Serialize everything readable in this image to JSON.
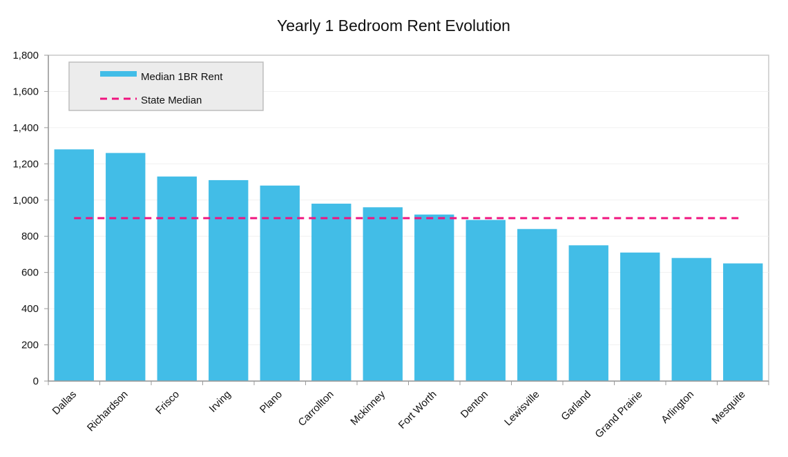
{
  "chart_data": {
    "type": "bar",
    "title": "Yearly 1 Bedroom Rent Evolution",
    "xlabel": "",
    "ylabel": "",
    "ylim": [
      0,
      1800
    ],
    "yticks": [
      0,
      200,
      400,
      600,
      800,
      1000,
      1200,
      1400,
      1600,
      1800
    ],
    "ytick_labels": [
      "0",
      "200",
      "400",
      "600",
      "800",
      "1,000",
      "1,200",
      "1,400",
      "1,600",
      "1,800"
    ],
    "categories": [
      "Dallas",
      "Richardson",
      "Frisco",
      "Irving",
      "Plano",
      "Carrollton",
      "Mckinney",
      "Fort Worth",
      "Denton",
      "Lewisville",
      "Garland",
      "Grand Prairie",
      "Arlington",
      "Mesquite"
    ],
    "series": [
      {
        "name": "Median 1BR Rent",
        "type": "bar",
        "color": "#42BDE7",
        "values": [
          1280,
          1260,
          1130,
          1110,
          1080,
          980,
          960,
          920,
          890,
          840,
          750,
          710,
          680,
          650
        ]
      },
      {
        "name": "State Median",
        "type": "line",
        "style": "dashed",
        "color": "#F0147F",
        "value": 900
      }
    ],
    "grid": true,
    "legend_position": "top-left"
  }
}
